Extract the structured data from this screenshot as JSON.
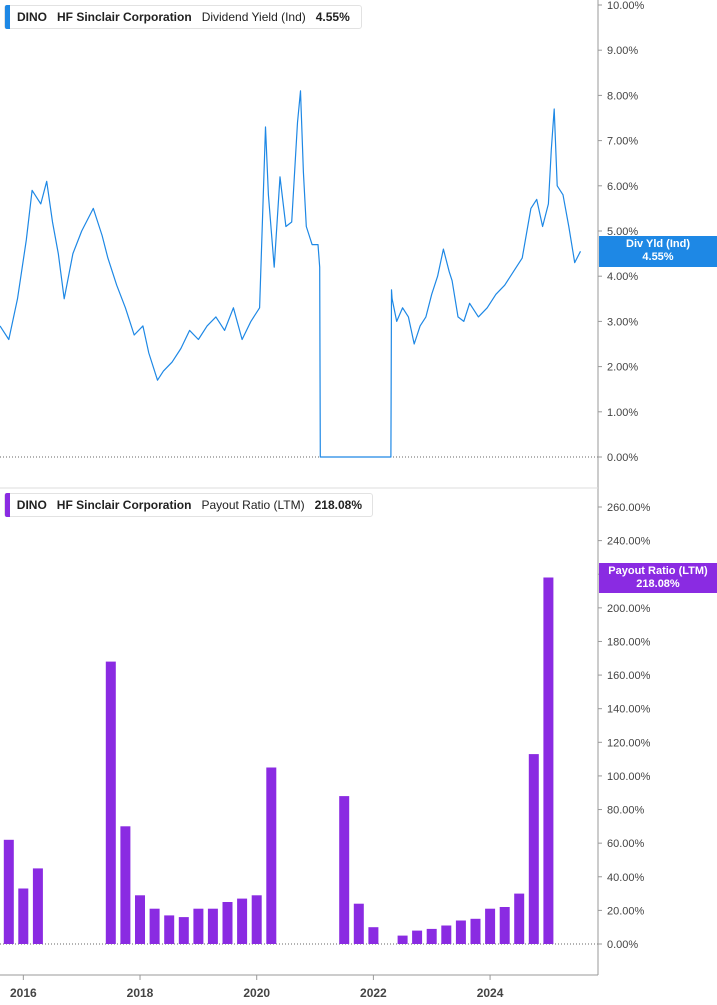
{
  "colors": {
    "yield": "#1e88e5",
    "payout": "#8a2be2",
    "axis": "#999999",
    "tick_text": "#444444",
    "zero_line": "#666666"
  },
  "legends": {
    "top": {
      "ticker": "DINO",
      "company": "HF Sinclair Corporation",
      "metric": "Dividend Yield (Ind)",
      "value": "4.55%"
    },
    "bottom": {
      "ticker": "DINO",
      "company": "HF Sinclair Corporation",
      "metric": "Payout Ratio (LTM)",
      "value": "218.08%"
    }
  },
  "tags": {
    "top": {
      "line1": "Div Yld (Ind)",
      "line2": "4.55%"
    },
    "bottom": {
      "line1": "Payout Ratio (LTM)",
      "line2": "218.08%"
    }
  },
  "chart_data": [
    {
      "type": "line",
      "name": "Dividend Yield (Ind)",
      "y_ticks": [
        "0.00%",
        "1.00%",
        "2.00%",
        "3.00%",
        "4.00%",
        "5.00%",
        "6.00%",
        "7.00%",
        "8.00%",
        "9.00%",
        "10.00%"
      ],
      "ylim": [
        0,
        10
      ],
      "xlim": [
        2015.6,
        2025.85
      ],
      "x_ticks": [
        "2016",
        "2018",
        "2020",
        "2022",
        "2024"
      ],
      "x": [
        2015.6,
        2015.75,
        2015.9,
        2016.05,
        2016.15,
        2016.3,
        2016.4,
        2016.5,
        2016.6,
        2016.7,
        2016.85,
        2017.0,
        2017.2,
        2017.35,
        2017.45,
        2017.6,
        2017.75,
        2017.9,
        2018.05,
        2018.15,
        2018.3,
        2018.4,
        2018.55,
        2018.7,
        2018.85,
        2019.0,
        2019.15,
        2019.3,
        2019.45,
        2019.6,
        2019.75,
        2019.9,
        2020.05,
        2020.15,
        2020.2,
        2020.3,
        2020.4,
        2020.5,
        2020.6,
        2020.7,
        2020.75,
        2020.8,
        2020.85,
        2020.95,
        2021.05,
        2021.08,
        2021.09,
        2021.5,
        2021.9,
        2022.3,
        2022.31,
        2022.32,
        2022.4,
        2022.5,
        2022.6,
        2022.7,
        2022.8,
        2022.9,
        2023.0,
        2023.1,
        2023.2,
        2023.3,
        2023.35,
        2023.45,
        2023.55,
        2023.65,
        2023.8,
        2023.95,
        2024.1,
        2024.25,
        2024.4,
        2024.55,
        2024.7,
        2024.8,
        2024.9,
        2025.0,
        2025.05,
        2025.1,
        2025.15,
        2025.25,
        2025.35,
        2025.45,
        2025.55
      ],
      "values": [
        2.9,
        2.6,
        3.5,
        4.8,
        5.9,
        5.6,
        6.1,
        5.2,
        4.5,
        3.5,
        4.5,
        5.0,
        5.5,
        4.9,
        4.4,
        3.8,
        3.3,
        2.7,
        2.9,
        2.3,
        1.7,
        1.9,
        2.1,
        2.4,
        2.8,
        2.6,
        2.9,
        3.1,
        2.8,
        3.3,
        2.6,
        3.0,
        3.3,
        7.3,
        5.8,
        4.2,
        6.2,
        5.1,
        5.2,
        7.4,
        8.1,
        6.3,
        5.1,
        4.7,
        4.7,
        4.2,
        0.0,
        0.0,
        0.0,
        0.0,
        3.7,
        3.5,
        3.0,
        3.3,
        3.1,
        2.5,
        2.9,
        3.1,
        3.6,
        4.0,
        4.6,
        4.1,
        3.9,
        3.1,
        3.0,
        3.4,
        3.1,
        3.3,
        3.6,
        3.8,
        4.1,
        4.4,
        5.5,
        5.7,
        5.1,
        5.6,
        6.8,
        7.7,
        6.0,
        5.8,
        5.1,
        4.3,
        4.55
      ]
    },
    {
      "type": "bar",
      "name": "Payout Ratio (LTM)",
      "y_ticks": [
        "0.00%",
        "20.00%",
        "40.00%",
        "60.00%",
        "80.00%",
        "100.00%",
        "120.00%",
        "140.00%",
        "160.00%",
        "180.00%",
        "200.00%",
        "220.00%",
        "240.00%",
        "260.00%"
      ],
      "ylim": [
        0,
        260
      ],
      "xlim": [
        2015.6,
        2025.85
      ],
      "x_ticks": [
        "2016",
        "2018",
        "2020",
        "2022",
        "2024"
      ],
      "x": [
        2015.75,
        2016.0,
        2016.25,
        2017.5,
        2017.75,
        2018.0,
        2018.25,
        2018.5,
        2018.75,
        2019.0,
        2019.25,
        2019.5,
        2019.75,
        2020.0,
        2020.25,
        2021.5,
        2021.75,
        2022.0,
        2022.5,
        2022.75,
        2023.0,
        2023.25,
        2023.5,
        2023.75,
        2024.0,
        2024.25,
        2024.5,
        2024.75,
        2025.0
      ],
      "values": [
        62,
        33,
        45,
        168,
        70,
        29,
        21,
        17,
        16,
        21,
        21,
        25,
        27,
        29,
        105,
        88,
        24,
        10,
        5,
        8,
        9,
        11,
        14,
        15,
        21,
        22,
        30,
        113,
        218.08
      ]
    }
  ]
}
